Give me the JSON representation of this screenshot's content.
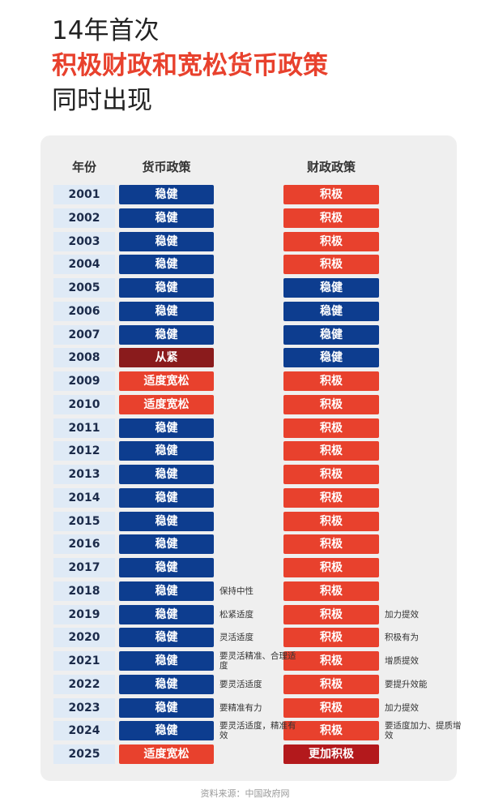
{
  "title": {
    "line1": "14年首次",
    "line2": "积极财政和宽松货币政策",
    "line3": "同时出现"
  },
  "headers": {
    "year": "年份",
    "monetary": "货币政策",
    "fiscal": "财政政策"
  },
  "colors": {
    "steady": "#0d3d8f",
    "tight": "#8a1b1c",
    "loose": "#e8412d",
    "proactive": "#e8412d",
    "more_proactive": "#b3191c",
    "year_bg": "#dfeaf6",
    "title_red": "#e8412d"
  },
  "rows": [
    {
      "year": "2001",
      "monetary": "稳健",
      "m_color": "steady",
      "fiscal": "积极",
      "f_color": "proactive",
      "m_note": "",
      "f_note": ""
    },
    {
      "year": "2002",
      "monetary": "稳健",
      "m_color": "steady",
      "fiscal": "积极",
      "f_color": "proactive",
      "m_note": "",
      "f_note": ""
    },
    {
      "year": "2003",
      "monetary": "稳健",
      "m_color": "steady",
      "fiscal": "积极",
      "f_color": "proactive",
      "m_note": "",
      "f_note": ""
    },
    {
      "year": "2004",
      "monetary": "稳健",
      "m_color": "steady",
      "fiscal": "积极",
      "f_color": "proactive",
      "m_note": "",
      "f_note": ""
    },
    {
      "year": "2005",
      "monetary": "稳健",
      "m_color": "steady",
      "fiscal": "稳健",
      "f_color": "steady",
      "m_note": "",
      "f_note": ""
    },
    {
      "year": "2006",
      "monetary": "稳健",
      "m_color": "steady",
      "fiscal": "稳健",
      "f_color": "steady",
      "m_note": "",
      "f_note": ""
    },
    {
      "year": "2007",
      "monetary": "稳健",
      "m_color": "steady",
      "fiscal": "稳健",
      "f_color": "steady",
      "m_note": "",
      "f_note": ""
    },
    {
      "year": "2008",
      "monetary": "从紧",
      "m_color": "tight",
      "fiscal": "稳健",
      "f_color": "steady",
      "m_note": "",
      "f_note": ""
    },
    {
      "year": "2009",
      "monetary": "适度宽松",
      "m_color": "loose",
      "fiscal": "积极",
      "f_color": "proactive",
      "m_note": "",
      "f_note": ""
    },
    {
      "year": "2010",
      "monetary": "适度宽松",
      "m_color": "loose",
      "fiscal": "积极",
      "f_color": "proactive",
      "m_note": "",
      "f_note": ""
    },
    {
      "year": "2011",
      "monetary": "稳健",
      "m_color": "steady",
      "fiscal": "积极",
      "f_color": "proactive",
      "m_note": "",
      "f_note": ""
    },
    {
      "year": "2012",
      "monetary": "稳健",
      "m_color": "steady",
      "fiscal": "积极",
      "f_color": "proactive",
      "m_note": "",
      "f_note": ""
    },
    {
      "year": "2013",
      "monetary": "稳健",
      "m_color": "steady",
      "fiscal": "积极",
      "f_color": "proactive",
      "m_note": "",
      "f_note": ""
    },
    {
      "year": "2014",
      "monetary": "稳健",
      "m_color": "steady",
      "fiscal": "积极",
      "f_color": "proactive",
      "m_note": "",
      "f_note": ""
    },
    {
      "year": "2015",
      "monetary": "稳健",
      "m_color": "steady",
      "fiscal": "积极",
      "f_color": "proactive",
      "m_note": "",
      "f_note": ""
    },
    {
      "year": "2016",
      "monetary": "稳健",
      "m_color": "steady",
      "fiscal": "积极",
      "f_color": "proactive",
      "m_note": "",
      "f_note": ""
    },
    {
      "year": "2017",
      "monetary": "稳健",
      "m_color": "steady",
      "fiscal": "积极",
      "f_color": "proactive",
      "m_note": "",
      "f_note": ""
    },
    {
      "year": "2018",
      "monetary": "稳健",
      "m_color": "steady",
      "fiscal": "积极",
      "f_color": "proactive",
      "m_note": "保持中性",
      "f_note": ""
    },
    {
      "year": "2019",
      "monetary": "稳健",
      "m_color": "steady",
      "fiscal": "积极",
      "f_color": "proactive",
      "m_note": "松紧适度",
      "f_note": "加力提效"
    },
    {
      "year": "2020",
      "monetary": "稳健",
      "m_color": "steady",
      "fiscal": "积极",
      "f_color": "proactive",
      "m_note": "灵活适度",
      "f_note": "积极有为"
    },
    {
      "year": "2021",
      "monetary": "稳健",
      "m_color": "steady",
      "fiscal": "积极",
      "f_color": "proactive",
      "m_note": "要灵活精准、合理适度",
      "f_note": "增质提效"
    },
    {
      "year": "2022",
      "monetary": "稳健",
      "m_color": "steady",
      "fiscal": "积极",
      "f_color": "proactive",
      "m_note": "要灵活适度",
      "f_note": "要提升效能"
    },
    {
      "year": "2023",
      "monetary": "稳健",
      "m_color": "steady",
      "fiscal": "积极",
      "f_color": "proactive",
      "m_note": "要精准有力",
      "f_note": "加力提效"
    },
    {
      "year": "2024",
      "monetary": "稳健",
      "m_color": "steady",
      "fiscal": "积极",
      "f_color": "proactive",
      "m_note": "要灵活适度，精准有效",
      "f_note": "要适度加力、提质增效"
    },
    {
      "year": "2025",
      "monetary": "适度宽松",
      "m_color": "loose",
      "fiscal": "更加积极",
      "f_color": "more_proactive",
      "m_note": "",
      "f_note": ""
    }
  ],
  "source": "资料来源：中国政府网"
}
